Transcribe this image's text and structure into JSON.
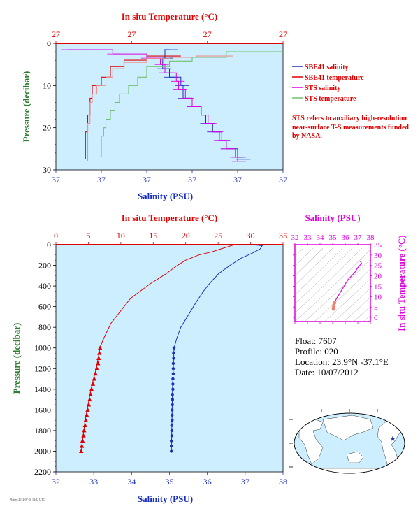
{
  "chart_data": [
    {
      "type": "line",
      "id": "near-surface",
      "x_top_label": "In situ Temperature (°C)",
      "x_bottom_label": "Salinity (PSU)",
      "ylabel": "Pressure (decibar)",
      "top_tick_labels": [
        "27",
        "27",
        "27",
        "27"
      ],
      "bottom_tick_labels": [
        "37",
        "37",
        "37",
        "37",
        "37",
        "37"
      ],
      "y_tick_labels": [
        "0",
        "10",
        "20",
        "30"
      ],
      "ylim": [
        0,
        30
      ],
      "legend_position": "right",
      "series": [
        {
          "name": "SBE41 salinity",
          "color": "#1a2fbf",
          "values": [
            [
              0.5,
              1.5
            ],
            [
              0.48,
              3.5
            ],
            [
              0.47,
              6
            ],
            [
              0.5,
              8
            ],
            [
              0.55,
              10
            ],
            [
              0.56,
              13
            ],
            [
              0.6,
              15
            ],
            [
              0.64,
              17
            ],
            [
              0.66,
              19
            ],
            [
              0.69,
              21
            ],
            [
              0.73,
              23
            ],
            [
              0.75,
              25
            ],
            [
              0.8,
              27
            ],
            [
              0.82,
              27.5
            ]
          ]
        },
        {
          "name": "SBE41 temperature",
          "color": "#e00000",
          "values": [
            [
              0.55,
              3
            ],
            [
              0.4,
              4
            ],
            [
              0.3,
              5.5
            ],
            [
              0.24,
              8
            ],
            [
              0.2,
              10
            ],
            [
              0.16,
              13
            ],
            [
              0.15,
              17
            ],
            [
              0.14,
              21
            ],
            [
              0.13,
              25
            ],
            [
              0.13,
              27.5
            ]
          ]
        },
        {
          "name": "STS salinity",
          "color": "#e000e0",
          "values": [
            [
              0.05,
              1.5
            ],
            [
              0.25,
              2.5
            ],
            [
              0.4,
              3.5
            ],
            [
              0.46,
              5
            ],
            [
              0.48,
              7
            ],
            [
              0.53,
              9
            ],
            [
              0.54,
              11
            ],
            [
              0.57,
              13
            ],
            [
              0.6,
              15
            ],
            [
              0.64,
              17
            ],
            [
              0.67,
              19
            ],
            [
              0.7,
              21
            ],
            [
              0.72,
              23
            ],
            [
              0.75,
              25
            ],
            [
              0.79,
              27
            ],
            [
              0.8,
              28
            ]
          ]
        },
        {
          "name": "STS temperature",
          "color": "#f09090",
          "values": [
            [
              0.78,
              3
            ],
            [
              0.62,
              3.3
            ],
            [
              0.5,
              3.6
            ],
            [
              0.4,
              4.5
            ],
            [
              0.3,
              6
            ],
            [
              0.25,
              8
            ],
            [
              0.22,
              10
            ],
            [
              0.18,
              12
            ],
            [
              0.16,
              14
            ],
            [
              0.15,
              16
            ],
            [
              0.15,
              19
            ],
            [
              0.14,
              22
            ],
            [
              0.14,
              25
            ],
            [
              0.14,
              28
            ]
          ]
        },
        {
          "name": "STS temperature",
          "color": "#70c070",
          "values": [
            [
              1.0,
              2
            ],
            [
              0.75,
              3.3
            ],
            [
              0.6,
              4.2
            ],
            [
              0.5,
              5.5
            ],
            [
              0.4,
              8
            ],
            [
              0.36,
              10
            ],
            [
              0.32,
              12
            ],
            [
              0.28,
              14
            ],
            [
              0.26,
              16
            ],
            [
              0.24,
              18
            ],
            [
              0.22,
              20
            ],
            [
              0.21,
              22
            ],
            [
              0.2,
              24
            ],
            [
              0.2,
              27
            ]
          ]
        }
      ],
      "legend": [
        {
          "label": "SBE41 salinity",
          "color": "#1a2fbf"
        },
        {
          "label": "SBE41 temperature",
          "color": "#e00000"
        },
        {
          "label": "STS salinity",
          "color": "#e000e0"
        },
        {
          "label": "STS temperature",
          "color": "#70c070"
        }
      ],
      "note": "STS refers to auxiliary high-resolution near-surface T-S measurements funded by NASA."
    },
    {
      "type": "line",
      "id": "full-profile",
      "x_top_label": "In situ Temperature (°C)",
      "x_bottom_label": "Salinity (PSU)",
      "ylabel": "Pressure (decibar)",
      "top_xlim": [
        0,
        35
      ],
      "top_ticks": [
        0,
        5,
        10,
        15,
        20,
        25,
        30,
        35
      ],
      "bottom_xlim": [
        32,
        38
      ],
      "bottom_ticks": [
        32,
        33,
        34,
        35,
        36,
        37,
        38
      ],
      "ylim": [
        0,
        2200
      ],
      "y_ticks": [
        0,
        200,
        400,
        600,
        800,
        1000,
        1200,
        1400,
        1600,
        1800,
        2000,
        2200
      ],
      "temperature": {
        "name": "Temperature",
        "color": "#e00000",
        "values": [
          [
            27.5,
            0
          ],
          [
            26.5,
            20
          ],
          [
            25.5,
            40
          ],
          [
            24,
            70
          ],
          [
            22,
            100
          ],
          [
            20,
            150
          ],
          [
            18.5,
            210
          ],
          [
            17,
            280
          ],
          [
            16,
            320
          ],
          [
            14.5,
            380
          ],
          [
            13,
            450
          ],
          [
            11.5,
            520
          ],
          [
            10.5,
            600
          ],
          [
            9.5,
            680
          ],
          [
            8.5,
            760
          ],
          [
            7.8,
            850
          ],
          [
            7.2,
            930
          ],
          [
            6.8,
            1000
          ],
          [
            6.5,
            1100
          ],
          [
            6.2,
            1200
          ],
          [
            5.8,
            1300
          ],
          [
            5.4,
            1400
          ],
          [
            5.1,
            1500
          ],
          [
            4.8,
            1600
          ],
          [
            4.5,
            1700
          ],
          [
            4.3,
            1800
          ],
          [
            4.1,
            1900
          ],
          [
            3.9,
            2000
          ]
        ],
        "markers": [
          [
            6.8,
            1000
          ],
          [
            6.7,
            1050
          ],
          [
            6.6,
            1100
          ],
          [
            6.5,
            1150
          ],
          [
            6.3,
            1200
          ],
          [
            6.1,
            1250
          ],
          [
            5.9,
            1300
          ],
          [
            5.7,
            1350
          ],
          [
            5.5,
            1400
          ],
          [
            5.35,
            1450
          ],
          [
            5.2,
            1500
          ],
          [
            5.05,
            1550
          ],
          [
            4.9,
            1600
          ],
          [
            4.75,
            1650
          ],
          [
            4.6,
            1700
          ],
          [
            4.5,
            1750
          ],
          [
            4.35,
            1800
          ],
          [
            4.25,
            1850
          ],
          [
            4.1,
            1900
          ],
          [
            4.0,
            1950
          ],
          [
            3.9,
            2000
          ]
        ]
      },
      "salinity": {
        "name": "Salinity",
        "color": "#1a2fbf",
        "values": [
          [
            37.2,
            0
          ],
          [
            37.45,
            10
          ],
          [
            37.4,
            40
          ],
          [
            37.2,
            80
          ],
          [
            36.9,
            130
          ],
          [
            36.6,
            200
          ],
          [
            36.3,
            280
          ],
          [
            36.05,
            380
          ],
          [
            35.9,
            450
          ],
          [
            35.7,
            560
          ],
          [
            35.5,
            680
          ],
          [
            35.3,
            800
          ],
          [
            35.2,
            900
          ],
          [
            35.12,
            1000
          ],
          [
            35.1,
            1200
          ],
          [
            35.08,
            1400
          ],
          [
            35.07,
            1600
          ],
          [
            35.06,
            1800
          ],
          [
            35.05,
            2000
          ]
        ],
        "markers": [
          [
            35.12,
            1000
          ],
          [
            35.11,
            1050
          ],
          [
            35.11,
            1100
          ],
          [
            35.1,
            1150
          ],
          [
            35.1,
            1200
          ],
          [
            35.1,
            1250
          ],
          [
            35.09,
            1300
          ],
          [
            35.09,
            1350
          ],
          [
            35.09,
            1400
          ],
          [
            35.08,
            1450
          ],
          [
            35.08,
            1500
          ],
          [
            35.08,
            1550
          ],
          [
            35.07,
            1600
          ],
          [
            35.07,
            1650
          ],
          [
            35.07,
            1700
          ],
          [
            35.06,
            1750
          ],
          [
            35.06,
            1800
          ],
          [
            35.06,
            1850
          ],
          [
            35.05,
            1900
          ],
          [
            35.05,
            1950
          ],
          [
            35.05,
            2000
          ]
        ]
      }
    },
    {
      "type": "scatter",
      "id": "ts-diagram",
      "xlabel": "Salinity (PSU)",
      "ylabel": "In situ Temperature (°C)",
      "xlim": [
        32,
        38
      ],
      "x_ticks": [
        32,
        33,
        34,
        35,
        36,
        37,
        38
      ],
      "ylim": [
        -2,
        35
      ],
      "y_ticks": [
        0,
        5,
        10,
        15,
        20,
        25,
        30,
        35
      ],
      "values": [
        [
          37.2,
          27
        ],
        [
          37.3,
          26
        ],
        [
          37.0,
          24
        ],
        [
          36.8,
          22
        ],
        [
          36.5,
          20
        ],
        [
          36.2,
          18
        ],
        [
          35.9,
          15
        ],
        [
          35.6,
          12
        ],
        [
          35.3,
          9
        ],
        [
          35.15,
          7
        ],
        [
          35.1,
          6
        ],
        [
          35.08,
          5
        ],
        [
          35.06,
          4
        ]
      ]
    }
  ],
  "float_info": {
    "float": "Float: 7607",
    "profile": "Profile: 020",
    "location": "Location: 23.9°N  -37.1°E",
    "date": "Date: 10/07/2012"
  },
  "map": {
    "marker": "float-location",
    "marker_color": "#1a2fbf"
  },
  "credit": "Plotted 2012-07-10 14:22 UTC"
}
